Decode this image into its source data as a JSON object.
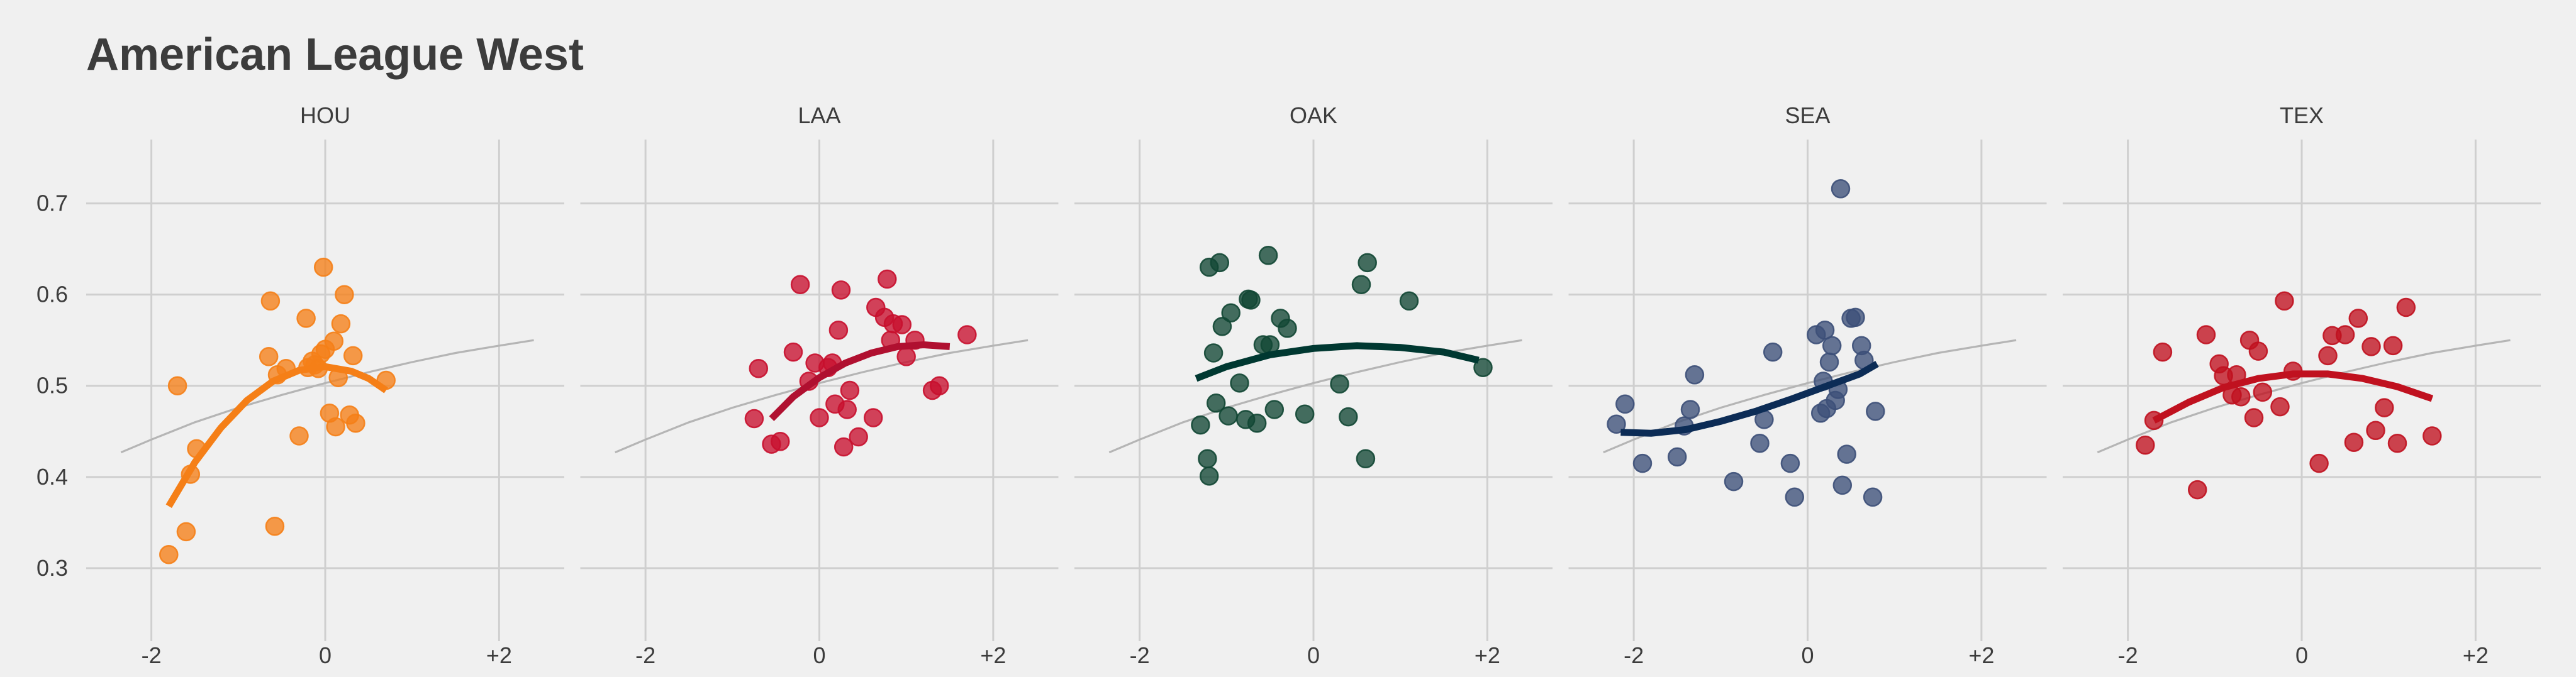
{
  "chart_data": {
    "type": "scatter",
    "title": "American League West",
    "xlabel": "",
    "ylabel": "",
    "xlim": [
      -2.75,
      2.75
    ],
    "ylim": [
      0.22,
      0.77
    ],
    "x_ticks": [
      -2,
      0,
      2
    ],
    "x_tick_labels": [
      "-2",
      "0",
      "+2"
    ],
    "y_ticks": [
      0.3,
      0.4,
      0.5,
      0.6,
      0.7
    ],
    "y_tick_labels": [
      "0.3",
      "0.4",
      "0.5",
      "0.6",
      "0.7"
    ],
    "grid": true,
    "reference_curve": {
      "x": [
        -2.35,
        -2.0,
        -1.5,
        -1.0,
        -0.5,
        0.0,
        0.5,
        1.0,
        1.5,
        2.0,
        2.4
      ],
      "y": [
        0.427,
        0.441,
        0.46,
        0.476,
        0.49,
        0.503,
        0.515,
        0.526,
        0.536,
        0.544,
        0.55
      ]
    },
    "panels": [
      {
        "team": "HOU",
        "color": "#f57f17",
        "trend_color": "#f57f17",
        "trend": {
          "x": [
            -1.8,
            -1.5,
            -1.2,
            -0.9,
            -0.6,
            -0.3,
            0.0,
            0.3,
            0.5,
            0.7
          ],
          "y": [
            0.368,
            0.416,
            0.454,
            0.484,
            0.505,
            0.517,
            0.521,
            0.516,
            0.508,
            0.495
          ]
        },
        "points": [
          [
            -1.8,
            0.315
          ],
          [
            -1.6,
            0.34
          ],
          [
            -1.7,
            0.5
          ],
          [
            -1.55,
            0.403
          ],
          [
            -1.48,
            0.431
          ],
          [
            -0.63,
            0.593
          ],
          [
            -0.65,
            0.532
          ],
          [
            -0.58,
            0.346
          ],
          [
            -0.55,
            0.512
          ],
          [
            -0.45,
            0.519
          ],
          [
            -0.3,
            0.445
          ],
          [
            -0.22,
            0.574
          ],
          [
            -0.2,
            0.52
          ],
          [
            -0.15,
            0.527
          ],
          [
            -0.12,
            0.523
          ],
          [
            -0.08,
            0.519
          ],
          [
            -0.05,
            0.535
          ],
          [
            -0.02,
            0.63
          ],
          [
            0.0,
            0.54
          ],
          [
            0.05,
            0.47
          ],
          [
            0.1,
            0.549
          ],
          [
            0.12,
            0.455
          ],
          [
            0.15,
            0.509
          ],
          [
            0.18,
            0.568
          ],
          [
            0.22,
            0.6
          ],
          [
            0.28,
            0.468
          ],
          [
            0.32,
            0.533
          ],
          [
            0.35,
            0.459
          ],
          [
            0.7,
            0.506
          ]
        ]
      },
      {
        "team": "LAA",
        "color": "#c8102e",
        "trend_color": "#b01030",
        "trend": {
          "x": [
            -0.55,
            -0.3,
            0.0,
            0.3,
            0.6,
            0.9,
            1.2,
            1.5
          ],
          "y": [
            0.464,
            0.488,
            0.509,
            0.525,
            0.536,
            0.543,
            0.545,
            0.543
          ]
        },
        "points": [
          [
            -0.7,
            0.519
          ],
          [
            -0.75,
            0.464
          ],
          [
            -0.55,
            0.436
          ],
          [
            -0.45,
            0.439
          ],
          [
            -0.3,
            0.537
          ],
          [
            -0.22,
            0.611
          ],
          [
            -0.12,
            0.505
          ],
          [
            -0.05,
            0.525
          ],
          [
            0.0,
            0.465
          ],
          [
            0.1,
            0.52
          ],
          [
            0.15,
            0.525
          ],
          [
            0.18,
            0.48
          ],
          [
            0.22,
            0.561
          ],
          [
            0.25,
            0.605
          ],
          [
            0.28,
            0.433
          ],
          [
            0.32,
            0.474
          ],
          [
            0.35,
            0.495
          ],
          [
            0.45,
            0.444
          ],
          [
            0.62,
            0.465
          ],
          [
            0.65,
            0.586
          ],
          [
            0.75,
            0.575
          ],
          [
            0.78,
            0.617
          ],
          [
            0.82,
            0.55
          ],
          [
            0.85,
            0.568
          ],
          [
            0.95,
            0.567
          ],
          [
            1.0,
            0.532
          ],
          [
            1.1,
            0.55
          ],
          [
            1.3,
            0.495
          ],
          [
            1.38,
            0.5
          ],
          [
            1.7,
            0.556
          ]
        ]
      },
      {
        "team": "OAK",
        "color": "#124734",
        "trend_color": "#003831",
        "trend": {
          "x": [
            -1.35,
            -1.0,
            -0.5,
            0.0,
            0.5,
            1.0,
            1.5,
            1.9
          ],
          "y": [
            0.508,
            0.521,
            0.534,
            0.541,
            0.544,
            0.542,
            0.537,
            0.528
          ]
        },
        "points": [
          [
            -1.3,
            0.457
          ],
          [
            -1.2,
            0.63
          ],
          [
            -1.22,
            0.42
          ],
          [
            -1.2,
            0.401
          ],
          [
            -1.15,
            0.536
          ],
          [
            -1.12,
            0.481
          ],
          [
            -1.08,
            0.635
          ],
          [
            -1.05,
            0.565
          ],
          [
            -0.98,
            0.467
          ],
          [
            -0.95,
            0.58
          ],
          [
            -0.85,
            0.503
          ],
          [
            -0.78,
            0.463
          ],
          [
            -0.75,
            0.595
          ],
          [
            -0.72,
            0.594
          ],
          [
            -0.65,
            0.459
          ],
          [
            -0.58,
            0.545
          ],
          [
            -0.52,
            0.643
          ],
          [
            -0.5,
            0.545
          ],
          [
            -0.45,
            0.474
          ],
          [
            -0.38,
            0.574
          ],
          [
            -0.3,
            0.563
          ],
          [
            -0.1,
            0.469
          ],
          [
            0.3,
            0.502
          ],
          [
            0.4,
            0.466
          ],
          [
            0.55,
            0.611
          ],
          [
            0.6,
            0.42
          ],
          [
            0.62,
            0.635
          ],
          [
            1.1,
            0.593
          ],
          [
            1.95,
            0.52
          ]
        ]
      },
      {
        "team": "SEA",
        "color": "#3c4f78",
        "trend_color": "#0c2c56",
        "trend": {
          "x": [
            -2.15,
            -1.8,
            -1.4,
            -1.0,
            -0.6,
            -0.2,
            0.2,
            0.6,
            0.8
          ],
          "y": [
            0.449,
            0.448,
            0.452,
            0.461,
            0.472,
            0.485,
            0.499,
            0.513,
            0.524
          ]
        },
        "points": [
          [
            -2.2,
            0.458
          ],
          [
            -2.1,
            0.48
          ],
          [
            -1.9,
            0.415
          ],
          [
            -1.5,
            0.422
          ],
          [
            -1.42,
            0.456
          ],
          [
            -1.35,
            0.474
          ],
          [
            -1.3,
            0.512
          ],
          [
            -0.85,
            0.395
          ],
          [
            -0.55,
            0.437
          ],
          [
            -0.5,
            0.463
          ],
          [
            -0.4,
            0.537
          ],
          [
            -0.2,
            0.415
          ],
          [
            -0.15,
            0.378
          ],
          [
            0.1,
            0.556
          ],
          [
            0.15,
            0.47
          ],
          [
            0.18,
            0.505
          ],
          [
            0.2,
            0.561
          ],
          [
            0.22,
            0.475
          ],
          [
            0.25,
            0.526
          ],
          [
            0.28,
            0.544
          ],
          [
            0.32,
            0.484
          ],
          [
            0.35,
            0.496
          ],
          [
            0.38,
            0.716
          ],
          [
            0.4,
            0.391
          ],
          [
            0.45,
            0.425
          ],
          [
            0.5,
            0.574
          ],
          [
            0.55,
            0.575
          ],
          [
            0.62,
            0.544
          ],
          [
            0.65,
            0.528
          ],
          [
            0.75,
            0.378
          ],
          [
            0.78,
            0.472
          ]
        ]
      },
      {
        "team": "TEX",
        "color": "#c0111f",
        "trend_color": "#c0111f",
        "trend": {
          "x": [
            -1.7,
            -1.3,
            -0.9,
            -0.5,
            -0.1,
            0.3,
            0.7,
            1.1,
            1.5
          ],
          "y": [
            0.462,
            0.482,
            0.498,
            0.508,
            0.513,
            0.513,
            0.508,
            0.499,
            0.486
          ]
        },
        "points": [
          [
            -1.8,
            0.435
          ],
          [
            -1.7,
            0.462
          ],
          [
            -1.6,
            0.537
          ],
          [
            -1.2,
            0.386
          ],
          [
            -1.1,
            0.556
          ],
          [
            -0.95,
            0.524
          ],
          [
            -0.9,
            0.511
          ],
          [
            -0.8,
            0.49
          ],
          [
            -0.75,
            0.512
          ],
          [
            -0.7,
            0.488
          ],
          [
            -0.6,
            0.55
          ],
          [
            -0.55,
            0.465
          ],
          [
            -0.5,
            0.538
          ],
          [
            -0.45,
            0.493
          ],
          [
            -0.25,
            0.477
          ],
          [
            -0.2,
            0.593
          ],
          [
            -0.1,
            0.516
          ],
          [
            0.2,
            0.415
          ],
          [
            0.3,
            0.533
          ],
          [
            0.35,
            0.555
          ],
          [
            0.5,
            0.556
          ],
          [
            0.6,
            0.438
          ],
          [
            0.65,
            0.574
          ],
          [
            0.8,
            0.543
          ],
          [
            0.85,
            0.451
          ],
          [
            0.95,
            0.476
          ],
          [
            1.05,
            0.544
          ],
          [
            1.1,
            0.437
          ],
          [
            1.2,
            0.586
          ],
          [
            1.5,
            0.445
          ]
        ]
      }
    ]
  }
}
